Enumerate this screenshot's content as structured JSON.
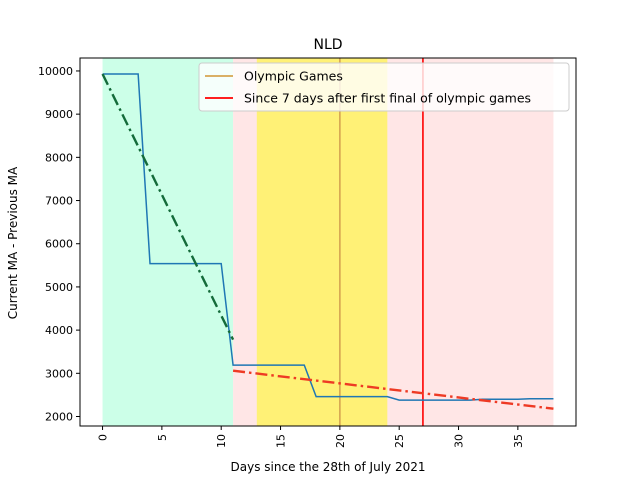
{
  "chart_data": {
    "type": "line",
    "title": "NLD",
    "xlabel": "Days since the 28th of July 2021",
    "ylabel": "Current MA - Previous MA",
    "xlim": [
      -1.9,
      39.9
    ],
    "ylim": [
      1780,
      10300
    ],
    "xticks": [
      0,
      5,
      10,
      15,
      20,
      25,
      30,
      35
    ],
    "yticks": [
      2000,
      3000,
      4000,
      5000,
      6000,
      7000,
      8000,
      9000,
      10000
    ],
    "x_tick_rotation": 90,
    "grid": false,
    "legend": {
      "placement": "top-right",
      "entries": [
        "Olympic Games",
        "Since 7 days after first final of olympic games"
      ]
    },
    "bands": [
      {
        "x0": 0,
        "x1": 11,
        "color": "#ccffe8"
      },
      {
        "x0": 11,
        "x1": 38,
        "color": "#ffe6e6"
      },
      {
        "x0": 13,
        "x1": 24,
        "color": "#fff176"
      }
    ],
    "vlines": [
      {
        "x": 20,
        "name": "Olympic Games",
        "color": "#d6a551"
      },
      {
        "x": 27,
        "name": "Since 7 days after first final of olympic games",
        "color": "#ff0000"
      }
    ],
    "series": [
      {
        "color": "#1f77b4",
        "style": "solid",
        "x": [
          0,
          1,
          2,
          3,
          4,
          5,
          6,
          7,
          8,
          9,
          10,
          11,
          12,
          13,
          14,
          15,
          16,
          17,
          18,
          19,
          20,
          21,
          22,
          23,
          24,
          25,
          26,
          27,
          28,
          29,
          30,
          31,
          32,
          33,
          34,
          35,
          36,
          37,
          38
        ],
        "y": [
          9930,
          9930,
          9930,
          9930,
          5540,
          5540,
          5540,
          5540,
          5540,
          5540,
          5540,
          3190,
          3190,
          3190,
          3190,
          3190,
          3190,
          3190,
          2460,
          2460,
          2460,
          2460,
          2460,
          2460,
          2460,
          2380,
          2380,
          2380,
          2380,
          2380,
          2380,
          2380,
          2400,
          2400,
          2400,
          2400,
          2410,
          2410,
          2410
        ]
      },
      {
        "color": "#146b3a",
        "style": "dashdot",
        "x": [
          0,
          11
        ],
        "y": [
          9930,
          3780
        ]
      },
      {
        "color": "#ee3a24",
        "style": "dashdot",
        "x": [
          11,
          38
        ],
        "y": [
          3060,
          2180
        ]
      }
    ]
  }
}
